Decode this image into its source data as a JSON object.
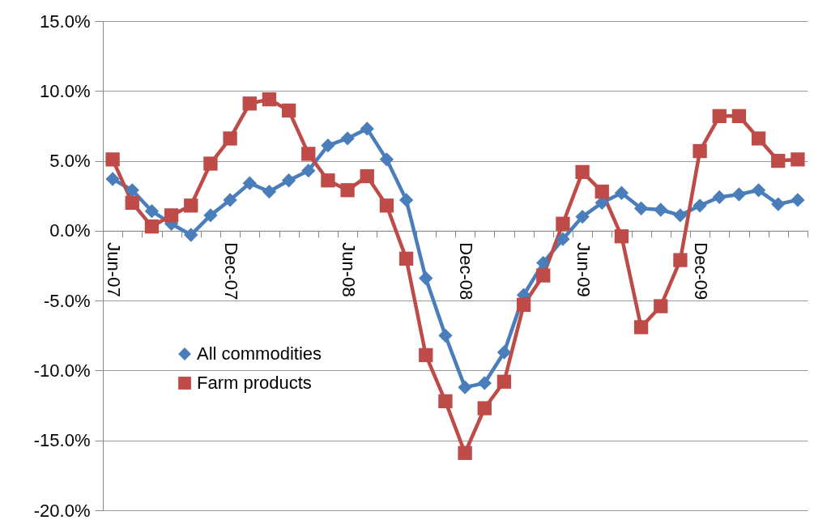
{
  "chart_data": {
    "type": "line",
    "categories": [
      "Jun-07",
      null,
      null,
      null,
      null,
      null,
      "Dec-07",
      null,
      null,
      null,
      null,
      null,
      "Jun-08",
      null,
      null,
      null,
      null,
      null,
      "Dec-08",
      null,
      null,
      null,
      null,
      null,
      "Jun-09",
      null,
      null,
      null,
      null,
      null,
      "Dec-09",
      null,
      null,
      null,
      null,
      null
    ],
    "series": [
      {
        "name": "All commodities",
        "color": "#4a7ebb",
        "marker": "diamond",
        "values": [
          3.7,
          2.9,
          1.4,
          0.5,
          -0.3,
          1.1,
          2.2,
          3.4,
          2.8,
          3.6,
          4.3,
          6.1,
          6.6,
          7.3,
          5.1,
          2.2,
          -3.4,
          -7.5,
          -11.2,
          -10.9,
          -8.7,
          -4.6,
          -2.3,
          -0.6,
          1.0,
          2.0,
          2.7,
          1.6,
          1.5,
          1.1,
          1.8,
          2.4,
          2.6,
          2.9,
          1.9,
          2.2
        ]
      },
      {
        "name": "Farm products",
        "color": "#be4b48",
        "marker": "square",
        "values": [
          5.1,
          2.0,
          0.3,
          1.1,
          1.8,
          4.8,
          6.6,
          9.1,
          9.4,
          8.6,
          5.5,
          3.6,
          2.9,
          3.9,
          1.8,
          -2.0,
          -8.9,
          -12.2,
          -15.9,
          -12.7,
          -10.8,
          -5.3,
          -3.2,
          0.5,
          4.2,
          2.8,
          -0.4,
          -6.9,
          -5.4,
          -2.1,
          5.7,
          8.2,
          8.2,
          6.6,
          5.0,
          5.1
        ]
      }
    ],
    "ylim": [
      -20,
      15
    ],
    "yticks": [
      {
        "value": -20,
        "label": "-20.0%"
      },
      {
        "value": -15,
        "label": "-15.0%"
      },
      {
        "value": -10,
        "label": "-10.0%"
      },
      {
        "value": -5,
        "label": "-5.0%"
      },
      {
        "value": 0,
        "label": "0.0%"
      },
      {
        "value": 5,
        "label": "5.0%"
      },
      {
        "value": 10,
        "label": "10.0%"
      },
      {
        "value": 15,
        "label": "15.0%"
      }
    ],
    "grid": "y",
    "legend": "bottom left",
    "line_style": "solid"
  }
}
